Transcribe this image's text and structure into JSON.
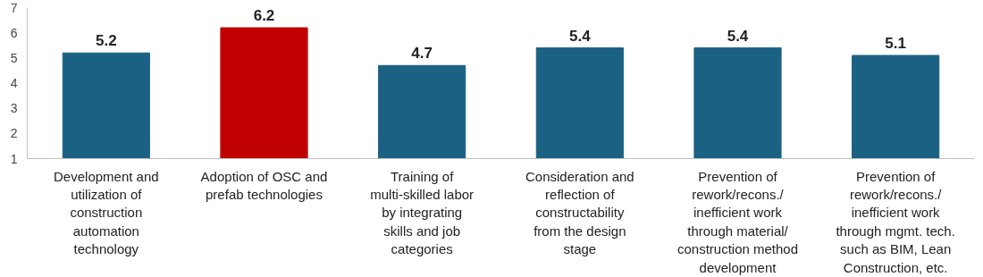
{
  "chart_data": {
    "type": "bar",
    "categories": [
      "Development and utilization of construction automation technology",
      "Adoption of OSC and prefab technologies",
      "Training of multi-skilled labor by integrating skills and job categories",
      "Consideration and reflection of constructability from the design stage",
      "Prevention of rework/recons./ inefficient work through material/ construction method development",
      "Prevention of rework/recons./ inefficient work through mgmt. tech. such as BIM, Lean Construction, etc."
    ],
    "values": [
      5.2,
      6.2,
      4.7,
      5.4,
      5.4,
      5.1
    ],
    "colors": [
      "#1b6184",
      "#c00000",
      "#1b6184",
      "#1b6184",
      "#1b6184",
      "#1b6184"
    ],
    "data_labels": true,
    "ylim": [
      1,
      7
    ],
    "yticks": [
      1,
      2,
      3,
      4,
      5,
      6,
      7
    ],
    "grid": false
  }
}
